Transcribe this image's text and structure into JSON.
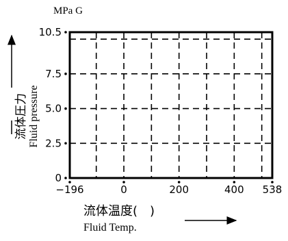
{
  "chart_data": {
    "type": "line",
    "title": "",
    "y_unit": "MPa G",
    "ylabel_cn": "流体圧力",
    "ylabel_en": "Fluid pressure",
    "xlabel_cn": "流体温度(　)",
    "xlabel_en": "Fluid Temp.",
    "xlim": [
      -196,
      538
    ],
    "ylim": [
      0,
      10.5
    ],
    "x_ticks": [
      -196,
      0,
      200,
      400,
      538
    ],
    "x_tick_labels": [
      "−196",
      "0",
      "200",
      "400",
      "538"
    ],
    "y_ticks": [
      0,
      2.5,
      5.0,
      7.5,
      10.5
    ],
    "y_tick_labels": [
      "0",
      "2.5",
      "5.0",
      "7.5",
      "10.5"
    ],
    "x_gridlines": [
      -100,
      0,
      100,
      200,
      300,
      400,
      500
    ],
    "y_gridlines": [
      2.5,
      5.0,
      7.5,
      10.0
    ],
    "grid": true,
    "series": [
      {
        "x": [
          -196,
          538
        ],
        "y": [
          10.5,
          10.5
        ]
      }
    ]
  }
}
